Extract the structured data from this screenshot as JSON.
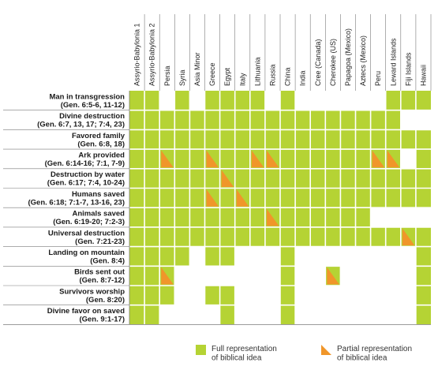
{
  "colors": {
    "full": "#b5d334",
    "partial": "#f0962a",
    "grid": "#7a7a7a",
    "empty": "#ffffff"
  },
  "chart_data": {
    "type": "heatmap",
    "columns": [
      "Assyrio-Babylonia 1",
      "Assyrio-Babylonia 2",
      "Persia",
      "Syria",
      "Asia Minor",
      "Greece",
      "Egypt",
      "Italy",
      "Lithuania",
      "Russia",
      "China",
      "India",
      "Cree (Canada)",
      "Cherokee (US)",
      "Papagoa (Mexico)",
      "Aztecs (Mexico)",
      "Peru",
      "Leward Islands",
      "Fiji Islands",
      "Hawaii"
    ],
    "rows": [
      {
        "label": [
          "Man in transgression",
          "(Gen. 6:5-6, 11-12)"
        ],
        "cells": "FFNFNFFFFNFNNNNNNFFF"
      },
      {
        "label": [
          "Divine destruction",
          "(Gen. 6:7, 13, 17; 7:4, 23)"
        ],
        "cells": "FFFFFFFFFFFFFFFFFFNN"
      },
      {
        "label": [
          "Favored family",
          "(Gen. 6:8, 18)"
        ],
        "cells": "FFFFFFFFFFFFFFFFFFFF"
      },
      {
        "label": [
          "Ark provided",
          "(Gen. 6:14-16; 7:1, 7-9)"
        ],
        "cells": "FFPFFPFFPPFFFFFFPPNF"
      },
      {
        "label": [
          "Destruction by water",
          "(Gen. 6:17; 7:4, 10-24)"
        ],
        "cells": "FFFFFFPFFFFFFFFFFFFF"
      },
      {
        "label": [
          "Humans saved",
          "(Gen. 6:18; 7:1-7, 13-16, 23)"
        ],
        "cells": "FFFFFPFPFFFFFFFFFFFF"
      },
      {
        "label": [
          "Animals saved",
          "(Gen. 6:19-20; 7:2-3)"
        ],
        "cells": "FFFFFFFFFPFFFFFFNNNN"
      },
      {
        "label": [
          "Universal destruction",
          "(Gen. 7:21-23)"
        ],
        "cells": "FFFFFFFFFFFFFFFFFFPF"
      },
      {
        "label": [
          "Landing on mountain",
          "(Gen. 8:4)"
        ],
        "cells": "FFFFNFFNNNFNNNNNNNNF"
      },
      {
        "label": [
          "Birds sent out",
          "(Gen. 8:7-12)"
        ],
        "cells": "FFPNNNNNNNFNNPNNNNNF"
      },
      {
        "label": [
          "Survivors worship",
          "(Gen. 8:20)"
        ],
        "cells": "FFFNNFFNNNFNNNNNNNNF"
      },
      {
        "label": [
          "Divine favor on saved",
          "(Gen. 9:1-17)"
        ],
        "cells": "FFNNNNFNNNFNNNNNNNNF"
      }
    ],
    "legend": [
      {
        "key": "F",
        "label": [
          "Full representation",
          "of biblical idea"
        ]
      },
      {
        "key": "P",
        "label": [
          "Partial representation",
          "of biblical idea"
        ]
      }
    ]
  }
}
